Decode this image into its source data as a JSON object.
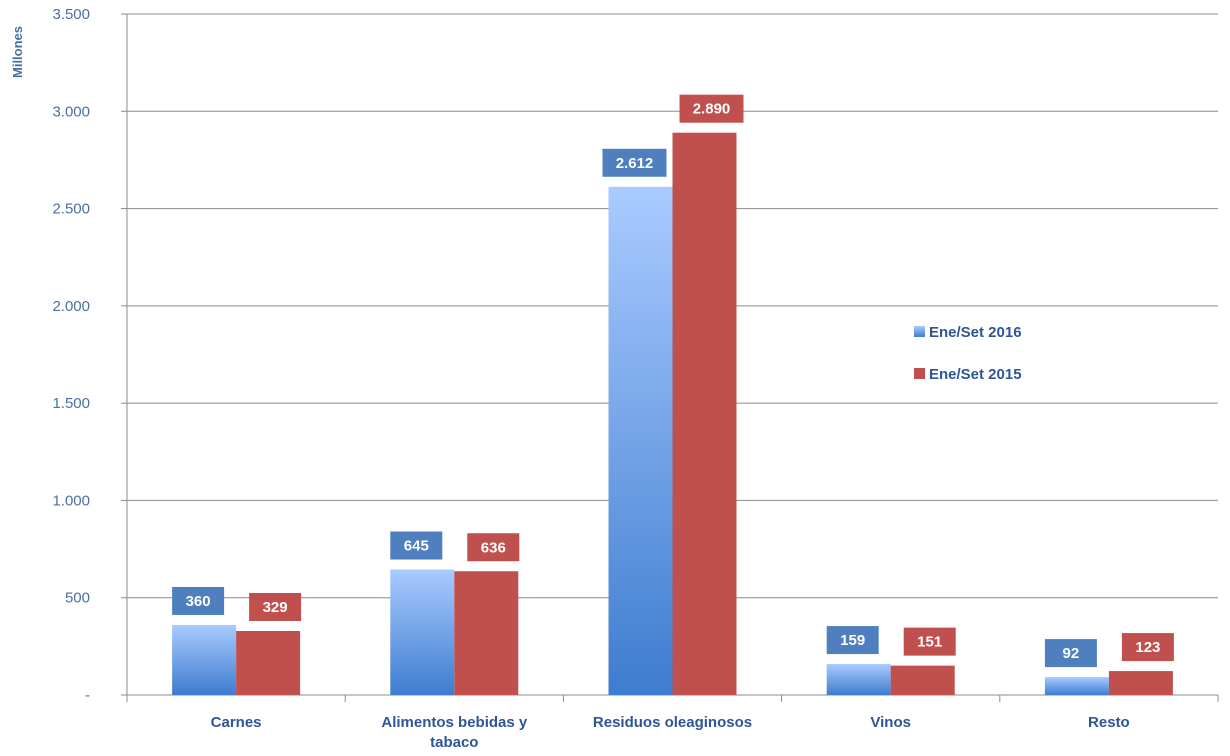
{
  "chart_data": {
    "type": "bar",
    "title": "",
    "ylabel": "Millones",
    "xlabel": "",
    "ylim": [
      0,
      3500
    ],
    "yticks": [
      0,
      500,
      1000,
      1500,
      2000,
      2500,
      3000,
      3500
    ],
    "ytick_labels": [
      "-",
      "500",
      "1.000",
      "1.500",
      "2.000",
      "2.500",
      "3.000",
      "3.500"
    ],
    "categories": [
      [
        "Carnes"
      ],
      [
        "Alimentos bebidas y",
        "tabaco"
      ],
      [
        "Residuos oleaginosos"
      ],
      [
        "Vinos"
      ],
      [
        "Resto"
      ]
    ],
    "series": [
      {
        "name": "Ene/Set 2016",
        "values": [
          360,
          645,
          2612,
          159,
          92
        ],
        "labels": [
          "360",
          "645",
          "2.612",
          "159",
          "92"
        ],
        "color": "#4a86d6",
        "label_color": "#4f7fbf"
      },
      {
        "name": "Ene/Set 2015",
        "values": [
          329,
          636,
          2890,
          151,
          123
        ],
        "labels": [
          "329",
          "636",
          "2.890",
          "151",
          "123"
        ],
        "color": "#c0504d",
        "label_color": "#c0504d"
      }
    ],
    "grid": true,
    "legend": {
      "position": "right"
    }
  }
}
